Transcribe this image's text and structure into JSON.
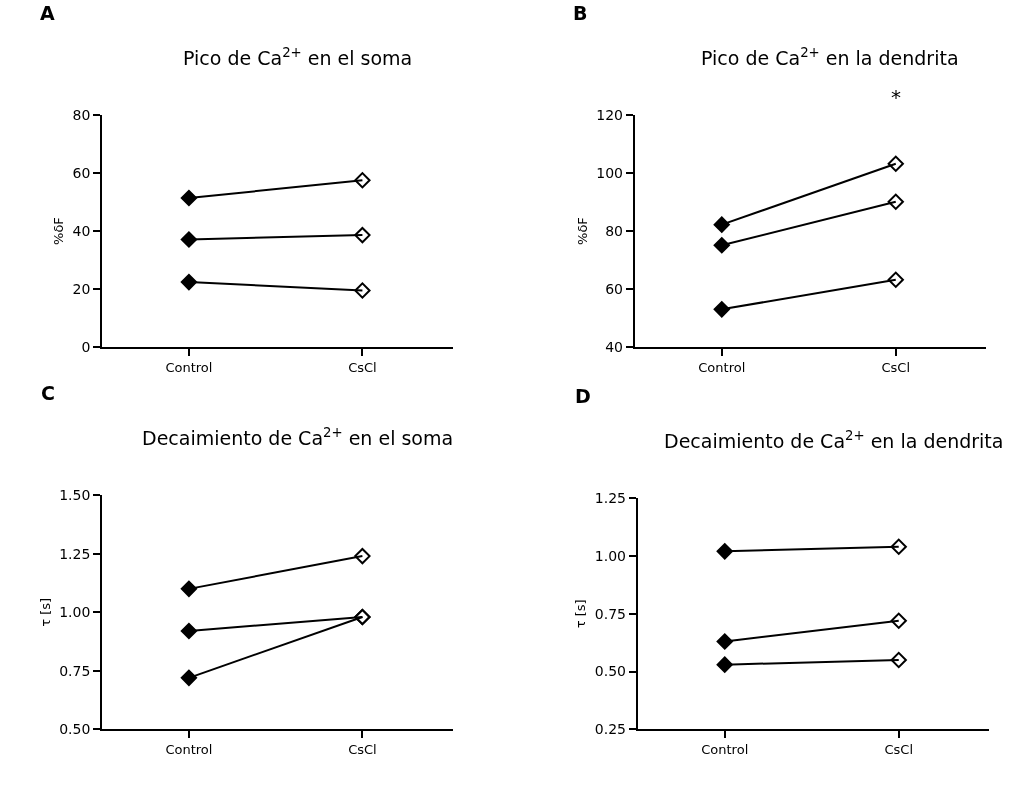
{
  "chart_data": [
    {
      "type": "line",
      "title": "Pico de Ca$^{2+}$ en el soma",
      "ylabel": "%δF",
      "annotations": [
        "A"
      ],
      "categories": [
        "Control",
        "CsCl"
      ],
      "marker": "diamond",
      "ylim": [
        0,
        80
      ],
      "yticks": [
        0,
        20,
        40,
        60,
        80
      ],
      "series": [
        {
          "color": "#000000",
          "values": [
            51.4,
            57.5
          ]
        },
        {
          "color": "#000000",
          "values": [
            37.1,
            38.6
          ]
        },
        {
          "color": "#000000",
          "values": [
            22.4,
            19.5
          ]
        }
      ]
    },
    {
      "type": "line",
      "title": "Pico de Ca$^{2+}$ en la dendrita",
      "ylabel": "%δF",
      "annotations": [
        "B",
        "*"
      ],
      "categories": [
        "Control",
        "CsCl"
      ],
      "marker": "diamond",
      "ylim": [
        40,
        120
      ],
      "yticks": [
        40,
        60,
        80,
        100,
        120
      ],
      "series": [
        {
          "color": "#000000",
          "values": [
            82.2,
            103.2
          ]
        },
        {
          "color": "#000000",
          "values": [
            75.1,
            90.1
          ]
        },
        {
          "color": "#000000",
          "values": [
            53.0,
            63.2
          ]
        }
      ]
    },
    {
      "type": "line",
      "title": "Decaimiento de Ca$^{2+}$ en el soma",
      "ylabel": "τ [s]",
      "annotations": [
        "C"
      ],
      "categories": [
        "Control",
        "CsCl"
      ],
      "marker": "diamond",
      "ylim": [
        0.5,
        1.5
      ],
      "yticks": [
        {
          "value": 0.5,
          "label": "0.50"
        },
        {
          "value": 0.75,
          "label": "0.75"
        },
        {
          "value": 1.0,
          "label": "1.00"
        },
        {
          "value": 1.25,
          "label": "1.25"
        },
        {
          "value": 1.5,
          "label": "1.50"
        }
      ],
      "series": [
        {
          "color": "#000000",
          "values": [
            1.1,
            1.24
          ]
        },
        {
          "color": "#000000",
          "values": [
            0.92,
            0.98
          ]
        },
        {
          "color": "#000000",
          "values": [
            0.72,
            0.98
          ]
        }
      ]
    },
    {
      "type": "line",
      "title": "Decaimiento de Ca$^{2+}$ en la dendrita",
      "ylabel": "τ [s]",
      "annotations": [
        "D"
      ],
      "categories": [
        "Control",
        "CsCl"
      ],
      "marker": "diamond",
      "ylim": [
        0.25,
        1.25
      ],
      "yticks": [
        {
          "value": 0.25,
          "label": "0.25"
        },
        {
          "value": 0.5,
          "label": "0.50"
        },
        {
          "value": 0.75,
          "label": "0.75"
        },
        {
          "value": 1.0,
          "label": "1.00"
        },
        {
          "value": 1.25,
          "label": "1.25"
        }
      ],
      "series": [
        {
          "color": "#000000",
          "values": [
            1.02,
            1.04
          ]
        },
        {
          "color": "#000000",
          "values": [
            0.63,
            0.72
          ]
        },
        {
          "color": "#000000",
          "values": [
            0.53,
            0.55
          ]
        }
      ]
    }
  ]
}
